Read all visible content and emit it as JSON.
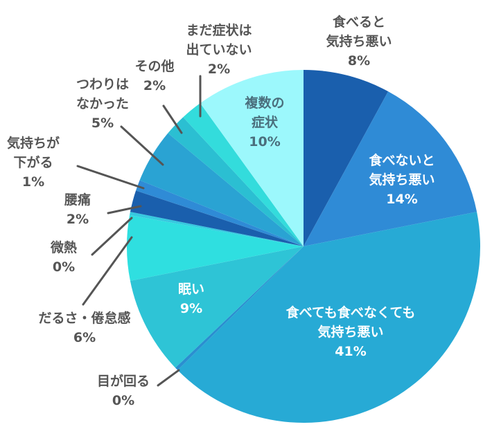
{
  "chart_data": {
    "type": "pie",
    "title": "",
    "start": "12 o'clock",
    "direction": "clockwise",
    "slices": [
      {
        "label": "食べると\n気持ち悪い",
        "pct_text": "8%",
        "value": 8,
        "color": "#1a5fad",
        "label_style": "outside"
      },
      {
        "label": "食べないと\n気持ち悪い",
        "pct_text": "14%",
        "value": 14,
        "color": "#2f8bd6",
        "label_style": "inside-white"
      },
      {
        "label": "食べても食べなくても\n気持ち悪い",
        "pct_text": "41%",
        "value": 41,
        "color": "#27aad5",
        "label_style": "inside-white"
      },
      {
        "label": "目が回る",
        "pct_text": "0%",
        "value": 0.3,
        "color": "#2a8fd0",
        "label_style": "outside"
      },
      {
        "label": "眠い",
        "pct_text": "9%",
        "value": 9,
        "color": "#2ec4d6",
        "label_style": "inside-white"
      },
      {
        "label": "だるさ・倦怠感",
        "pct_text": "6%",
        "value": 6,
        "color": "#2fdfe0",
        "label_style": "outside"
      },
      {
        "label": "微熱",
        "pct_text": "0%",
        "value": 0.3,
        "color": "#36c9e0",
        "label_style": "outside"
      },
      {
        "label": "腰痛",
        "pct_text": "2%",
        "value": 2,
        "color": "#1a5fad",
        "label_style": "outside"
      },
      {
        "label": "気持ちが\n下がる",
        "pct_text": "1%",
        "value": 1,
        "color": "#2f8bd6",
        "label_style": "outside"
      },
      {
        "label": "つわりは\nなかった",
        "pct_text": "5%",
        "value": 5,
        "color": "#2aa3d3",
        "label_style": "outside"
      },
      {
        "label": "その他",
        "pct_text": "2%",
        "value": 2,
        "color": "#2bbfd2",
        "label_style": "outside"
      },
      {
        "label": "まだ症状は\n出ていない",
        "pct_text": "2%",
        "value": 2,
        "color": "#33dcdc",
        "label_style": "outside"
      },
      {
        "label": "複数の\n症状",
        "pct_text": "10%",
        "value": 10,
        "color": "#9cf8fc",
        "label_style": "inside-dark"
      }
    ]
  }
}
